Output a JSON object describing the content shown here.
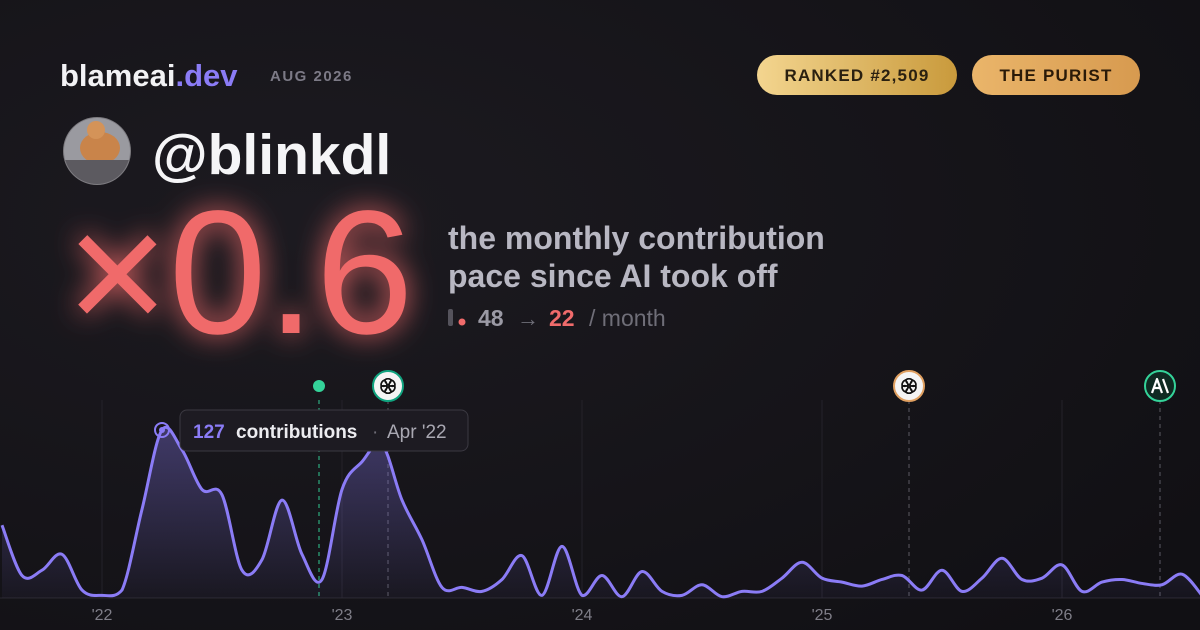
{
  "header": {
    "brand": "blameai",
    "brand_tld": ".dev",
    "period": "AUG 2026",
    "badges": [
      "RANKED #2,509",
      "THE PURIST"
    ]
  },
  "user": {
    "handle": "@blinkdl"
  },
  "headline": {
    "multiplier_symbol": "×",
    "multiplier": 0.6,
    "caption": [
      "the monthly contribution",
      "pace since AI took off"
    ],
    "before": 48,
    "arrow": "→",
    "after": 22,
    "unit": "/ month"
  },
  "chart_data": {
    "type": "area",
    "color": "#8b7cf6",
    "categories": [
      null,
      null,
      null,
      null,
      null,
      "'22",
      null,
      null,
      null,
      null,
      null,
      null,
      null,
      null,
      null,
      null,
      null,
      "'23",
      null,
      null,
      null,
      null,
      null,
      null,
      null,
      null,
      null,
      null,
      null,
      "'24",
      null,
      null,
      null,
      null,
      null,
      null,
      null,
      null,
      null,
      null,
      null,
      "'25",
      null,
      null,
      null,
      null,
      null,
      null,
      null,
      null,
      null,
      null,
      null,
      "'26",
      null,
      null,
      null,
      null,
      null,
      null,
      null
    ],
    "values": [
      55,
      17,
      21,
      33,
      6,
      2,
      6,
      67,
      127,
      112,
      82,
      78,
      21,
      29,
      74,
      33,
      14,
      82,
      103,
      116,
      74,
      44,
      8,
      8,
      5,
      14,
      32,
      2,
      39,
      2,
      17,
      1,
      20,
      5,
      2,
      10,
      1,
      5,
      5,
      15,
      27,
      15,
      12,
      9,
      14,
      17,
      6,
      21,
      5,
      15,
      30,
      14,
      15,
      25,
      5,
      12,
      14,
      11,
      10,
      18,
      2
    ],
    "ylim": [
      0,
      130
    ],
    "events": [
      {
        "x": 15.85,
        "kind": "dot",
        "color": "#34d399"
      },
      {
        "x": 19.3,
        "kind": "openai",
        "color": "#10a37f"
      },
      {
        "x": 45.35,
        "kind": "openai",
        "color": "#e0a060"
      },
      {
        "x": 57.9,
        "kind": "anthropic",
        "color": "#34d399"
      }
    ],
    "tooltip": {
      "index": 8,
      "label": "contributions",
      "separator": "·",
      "date": "Apr '22"
    }
  }
}
